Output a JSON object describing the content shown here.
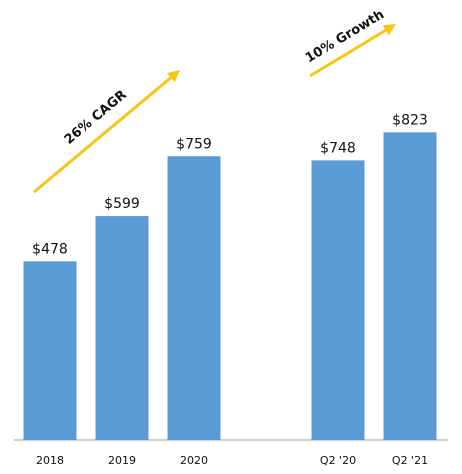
{
  "chart_data": {
    "type": "bar",
    "categories": [
      "2018",
      "2019",
      "2020",
      "Q2 '20",
      "Q2 '21"
    ],
    "values": [
      478,
      599,
      759,
      748,
      823
    ],
    "value_labels": [
      "$478",
      "$599",
      "$759",
      "$748",
      "$823"
    ],
    "ylim": [
      0,
      900
    ],
    "grid": false,
    "legend": "none",
    "annotations": [
      {
        "text": "26% CAGR",
        "from": "2018",
        "to": "2020"
      },
      {
        "text": "10% Growth",
        "from": "Q2 '20",
        "to": "Q2 '21"
      }
    ],
    "colors": {
      "bar": "#5b9bd5",
      "arrow": "#f5c518",
      "axis": "#9e9e9e"
    }
  }
}
